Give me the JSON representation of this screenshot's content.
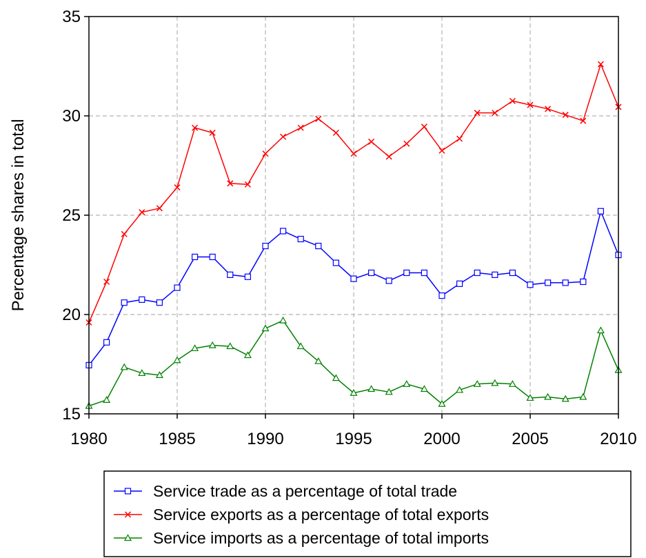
{
  "chart_data": {
    "type": "line",
    "title": "",
    "xlabel": "",
    "ylabel": "Percentage shares in total",
    "xlim": [
      1980,
      2010
    ],
    "ylim": [
      15,
      35
    ],
    "xticks": [
      1980,
      1985,
      1990,
      1995,
      2000,
      2005,
      2010
    ],
    "yticks": [
      15,
      20,
      25,
      30,
      35
    ],
    "grid": true,
    "legend_position": "bottom",
    "x": [
      1980,
      1981,
      1982,
      1983,
      1984,
      1985,
      1986,
      1987,
      1988,
      1989,
      1990,
      1991,
      1992,
      1993,
      1994,
      1995,
      1996,
      1997,
      1998,
      1999,
      2000,
      2001,
      2002,
      2003,
      2004,
      2005,
      2006,
      2007,
      2008,
      2009,
      2010
    ],
    "series": [
      {
        "name": "Service trade as a percentage of total trade",
        "color": "#0000ff",
        "marker": "square",
        "values": [
          17.45,
          18.6,
          20.6,
          20.75,
          20.6,
          21.35,
          22.9,
          22.9,
          22.0,
          21.9,
          23.45,
          24.2,
          23.8,
          23.45,
          22.6,
          21.8,
          22.1,
          21.7,
          22.1,
          22.1,
          20.95,
          21.55,
          22.1,
          22.0,
          22.1,
          21.5,
          21.6,
          21.6,
          21.65,
          25.2,
          23.0
        ]
      },
      {
        "name": "Service exports as a percentage of total exports",
        "color": "#ff0000",
        "marker": "cross",
        "values": [
          19.6,
          21.65,
          24.05,
          25.15,
          25.35,
          26.4,
          29.4,
          29.15,
          26.6,
          26.55,
          28.1,
          28.95,
          29.4,
          29.85,
          29.15,
          28.1,
          28.7,
          27.95,
          28.6,
          29.45,
          28.25,
          28.85,
          30.15,
          30.15,
          30.75,
          30.55,
          30.35,
          30.05,
          29.75,
          32.6,
          30.45
        ]
      },
      {
        "name": "Service imports as a percentage of total imports",
        "color": "#008000",
        "marker": "triangle",
        "values": [
          15.4,
          15.7,
          17.35,
          17.05,
          16.95,
          17.7,
          18.3,
          18.45,
          18.4,
          17.95,
          19.3,
          19.7,
          18.4,
          17.65,
          16.8,
          16.05,
          16.25,
          16.1,
          16.5,
          16.25,
          15.5,
          16.2,
          16.5,
          16.55,
          16.5,
          15.8,
          15.85,
          15.75,
          15.85,
          19.2,
          17.2
        ]
      }
    ]
  }
}
